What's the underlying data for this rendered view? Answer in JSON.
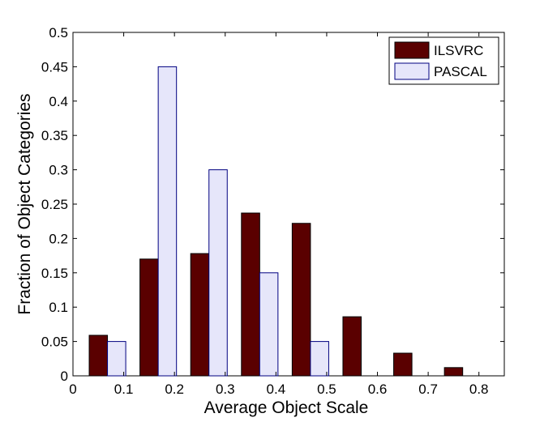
{
  "chart_data": {
    "type": "bar",
    "title": "",
    "xlabel": "Average Object Scale",
    "ylabel": "Fraction of Object Categories",
    "xlim": [
      0,
      0.85
    ],
    "ylim": [
      0,
      0.5
    ],
    "xticks": [
      0,
      0.1,
      0.2,
      0.3,
      0.4,
      0.5,
      0.6,
      0.7,
      0.8
    ],
    "xtick_labels": [
      "0",
      "0.1",
      "0.2",
      "0.3",
      "0.4",
      "0.5",
      "0.6",
      "0.7",
      "0.8"
    ],
    "yticks": [
      0,
      0.05,
      0.1,
      0.15,
      0.2,
      0.25,
      0.3,
      0.35,
      0.4,
      0.45,
      0.5
    ],
    "ytick_labels": [
      "0",
      "0.05",
      "0.1",
      "0.15",
      "0.2",
      "0.25",
      "0.3",
      "0.35",
      "0.4",
      "0.45",
      "0.5"
    ],
    "bin_centers": [
      0.068,
      0.168,
      0.268,
      0.368,
      0.468,
      0.568,
      0.668,
      0.768
    ],
    "series": [
      {
        "name": "ILSVRC",
        "color": "#5a0000",
        "values": [
          0.059,
          0.17,
          0.178,
          0.237,
          0.222,
          0.086,
          0.033,
          0.012
        ]
      },
      {
        "name": "PASCAL",
        "color": "#e6e6fa",
        "values": [
          0.05,
          0.45,
          0.3,
          0.15,
          0.05,
          0,
          0,
          0
        ]
      }
    ],
    "legend_position": "top-right",
    "grid": false
  }
}
